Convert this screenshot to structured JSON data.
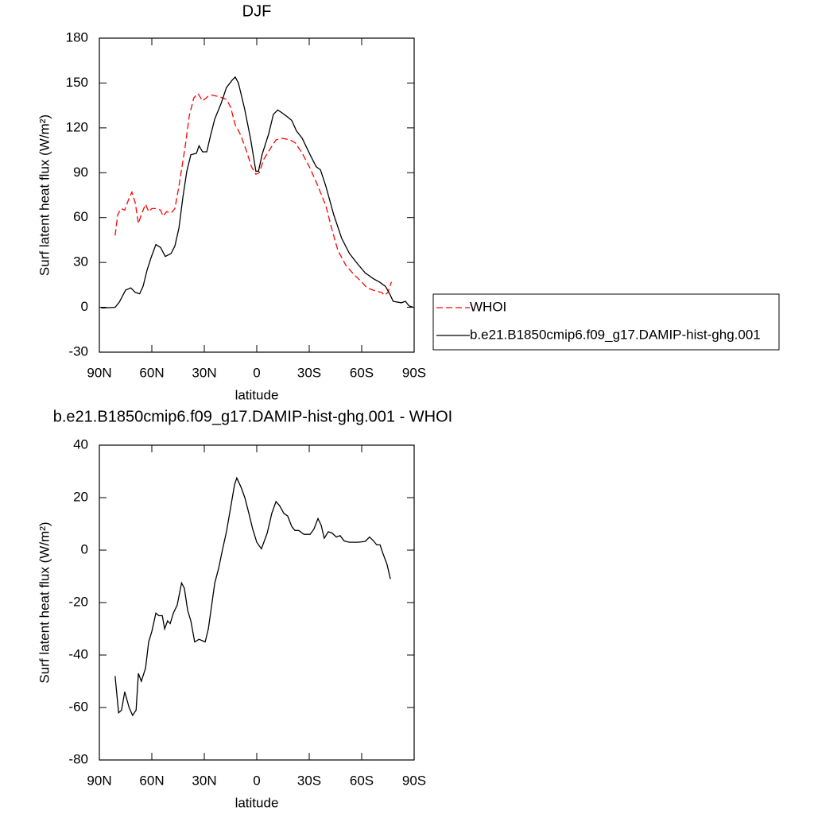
{
  "chart_data": [
    {
      "type": "line",
      "title": "DJF",
      "xlabel": "latitude",
      "ylabel": "Surf latent heat flux (W/m²)",
      "xlim": [
        90,
        -90
      ],
      "xticks": [
        {
          "value": 90,
          "label": "90N"
        },
        {
          "value": 60,
          "label": "60N"
        },
        {
          "value": 30,
          "label": "30N"
        },
        0,
        {
          "value": -30,
          "label": "30S"
        },
        {
          "value": -60,
          "label": "60S"
        },
        {
          "value": -90,
          "label": "90S"
        }
      ],
      "ylim": [
        -30,
        180
      ],
      "yticks": [
        -30,
        0,
        30,
        60,
        90,
        120,
        150,
        180
      ],
      "legend": "right",
      "series": [
        {
          "name": "WHOI",
          "color": "#ff0000",
          "dash": true,
          "x": [
            81,
            79.5,
            77.7,
            75.5,
            73,
            71.4,
            69.5,
            67.7,
            66,
            63.6,
            61.8,
            60,
            57.3,
            55,
            53.6,
            51.4,
            49,
            46.8,
            44.5,
            41,
            38.6,
            36,
            33.6,
            31,
            28,
            26,
            21.8,
            17.3,
            15,
            12.3,
            9.5,
            6,
            3,
            0.5,
            -1.4,
            -4,
            -7.7,
            -11,
            -14.5,
            -19,
            -22,
            -26,
            -30.5,
            -35,
            -39.5,
            -43,
            -46.4,
            -51,
            -55.5,
            -60,
            -63,
            -67.7,
            -71.4,
            -73,
            -75,
            -77
          ],
          "values": [
            48,
            62,
            66,
            65,
            73,
            77,
            70,
            56,
            62,
            69,
            64,
            66,
            66,
            65,
            61,
            64,
            63,
            66,
            81,
            107,
            128,
            140,
            143,
            138,
            141,
            142,
            141,
            139,
            134,
            122,
            116,
            105,
            94,
            89,
            90,
            99,
            106,
            112,
            113,
            112,
            110,
            103,
            93,
            81,
            68,
            52,
            38,
            28,
            22,
            17,
            13,
            11,
            10,
            8,
            10,
            17
          ]
        },
        {
          "name": "b.e21.B1850cmip6.f09_g17.DAMIP-hist-ghg.001",
          "color": "#000000",
          "dash": false,
          "x": [
            89,
            81,
            78.6,
            75,
            72,
            69.5,
            67,
            65,
            62.7,
            60.5,
            57.7,
            55,
            52.3,
            49,
            46.8,
            44.5,
            42.3,
            40,
            37.7,
            34.5,
            33,
            31,
            28.6,
            26.4,
            24,
            20.5,
            17.3,
            14,
            12.3,
            10.5,
            7,
            3.6,
            0.5,
            -1,
            -3,
            -6.8,
            -9.5,
            -12,
            -14.5,
            -16.8,
            -20,
            -22.7,
            -26,
            -30.5,
            -34,
            -36.4,
            -39.5,
            -44,
            -48.6,
            -53,
            -57.7,
            -62,
            -66.8,
            -70,
            -73.6,
            -76,
            -78,
            -82.7,
            -85,
            -87,
            -89.5
          ],
          "values": [
            -0.5,
            0,
            3.5,
            11.5,
            13,
            10,
            9,
            14,
            25,
            33,
            42,
            40,
            34,
            36,
            41,
            53,
            73,
            91,
            102,
            103,
            108,
            104,
            104,
            115,
            126,
            136,
            147,
            152,
            154,
            150,
            133,
            113,
            91,
            91,
            102,
            116,
            129,
            132,
            130,
            128,
            125,
            118,
            113,
            102,
            94,
            92,
            81,
            62,
            46,
            36,
            29,
            23,
            19,
            17,
            14,
            9,
            4,
            3,
            4,
            1,
            0
          ]
        }
      ]
    },
    {
      "type": "line",
      "title": "b.e21.B1850cmip6.f09_g17.DAMIP-hist-ghg.001 - WHOI",
      "xlabel": "latitude",
      "ylabel": "Surf latent heat flux (W/m²)",
      "xlim": [
        90,
        -90
      ],
      "xticks": [
        {
          "value": 90,
          "label": "90N"
        },
        {
          "value": 60,
          "label": "60N"
        },
        {
          "value": 30,
          "label": "30N"
        },
        0,
        {
          "value": -30,
          "label": "30S"
        },
        {
          "value": -60,
          "label": "60S"
        },
        {
          "value": -90,
          "label": "90S"
        }
      ],
      "ylim": [
        -80,
        40
      ],
      "yticks": [
        -80,
        -60,
        -40,
        -20,
        0,
        20,
        40
      ],
      "series": [
        {
          "color": "#000000",
          "dash": false,
          "x": [
            81,
            79,
            77.3,
            75.5,
            73,
            71,
            69,
            67.7,
            66,
            63.6,
            61.8,
            60,
            57.7,
            56,
            54,
            52.7,
            51,
            49.5,
            47.7,
            45.5,
            43,
            41.4,
            39.5,
            37.7,
            35.5,
            33,
            29.5,
            27.7,
            24,
            21.8,
            19.5,
            17.3,
            15,
            12.7,
            11.4,
            9,
            6.8,
            4.5,
            2.3,
            0,
            -2.7,
            -6,
            -8.6,
            -11,
            -13,
            -15.5,
            -17.7,
            -20,
            -21.8,
            -24,
            -27,
            -30.5,
            -32.7,
            -35,
            -36.8,
            -38.6,
            -40.9,
            -43,
            -45.5,
            -47.7,
            -50,
            -53,
            -57.7,
            -62,
            -64.5,
            -66.8,
            -68.6,
            -70.5,
            -72,
            -74.5,
            -76.4
          ],
          "values": [
            -48,
            -62,
            -61,
            -54,
            -60,
            -63,
            -61,
            -47,
            -50,
            -45,
            -35,
            -31,
            -24,
            -25,
            -25,
            -30,
            -27,
            -28,
            -24,
            -21,
            -12.5,
            -14.5,
            -23,
            -27,
            -35,
            -34,
            -35,
            -30,
            -12.5,
            -7,
            0.5,
            7,
            16,
            25,
            27.5,
            24,
            20,
            14,
            8,
            3,
            0.5,
            6.5,
            14,
            18.5,
            17,
            14,
            13,
            9,
            7.5,
            7.5,
            6,
            6,
            8,
            12,
            9.5,
            4.5,
            7,
            6.5,
            5,
            5.5,
            3.5,
            3,
            3,
            3.3,
            5,
            3.5,
            2,
            2,
            -1,
            -5.5,
            -11
          ]
        }
      ]
    }
  ]
}
